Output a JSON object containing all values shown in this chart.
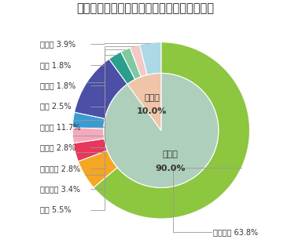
{
  "title": "＜対象インデックスの国・地域別構成比率＞",
  "title_fontsize": 10.5,
  "outer_slices": [
    {
      "label": "アメリカ 63.8%",
      "value": 63.8,
      "color": "#8DC63F"
    },
    {
      "label": "日本 5.5%",
      "value": 5.5,
      "color": "#F5A623"
    },
    {
      "label": "イギリス 3.4%",
      "value": 3.4,
      "color": "#E8375A"
    },
    {
      "label": "フランス 2.8%",
      "value": 2.8,
      "color": "#F5AABB"
    },
    {
      "label": "カナダ 2.8%",
      "value": 2.8,
      "color": "#3A9BD5"
    },
    {
      "label": "その他 11.7%",
      "value": 11.7,
      "color": "#4B4FA6"
    },
    {
      "label": "中国 2.5%",
      "value": 2.5,
      "color": "#2B9E8E"
    },
    {
      "label": "インド 1.8%",
      "value": 1.8,
      "color": "#7FC9A0"
    },
    {
      "label": "台湾 1.8%",
      "value": 1.8,
      "color": "#F5C8C8"
    },
    {
      "label": "その他 3.9%",
      "value": 3.9,
      "color": "#ADD8E6"
    }
  ],
  "inner_slices": [
    {
      "label": "先進国\n90.0%",
      "value": 90.0,
      "color": "#AECFBB"
    },
    {
      "label": "新興国\n10.0%",
      "value": 10.0,
      "color": "#F0C4A8"
    }
  ],
  "background_color": "#FFFFFF"
}
